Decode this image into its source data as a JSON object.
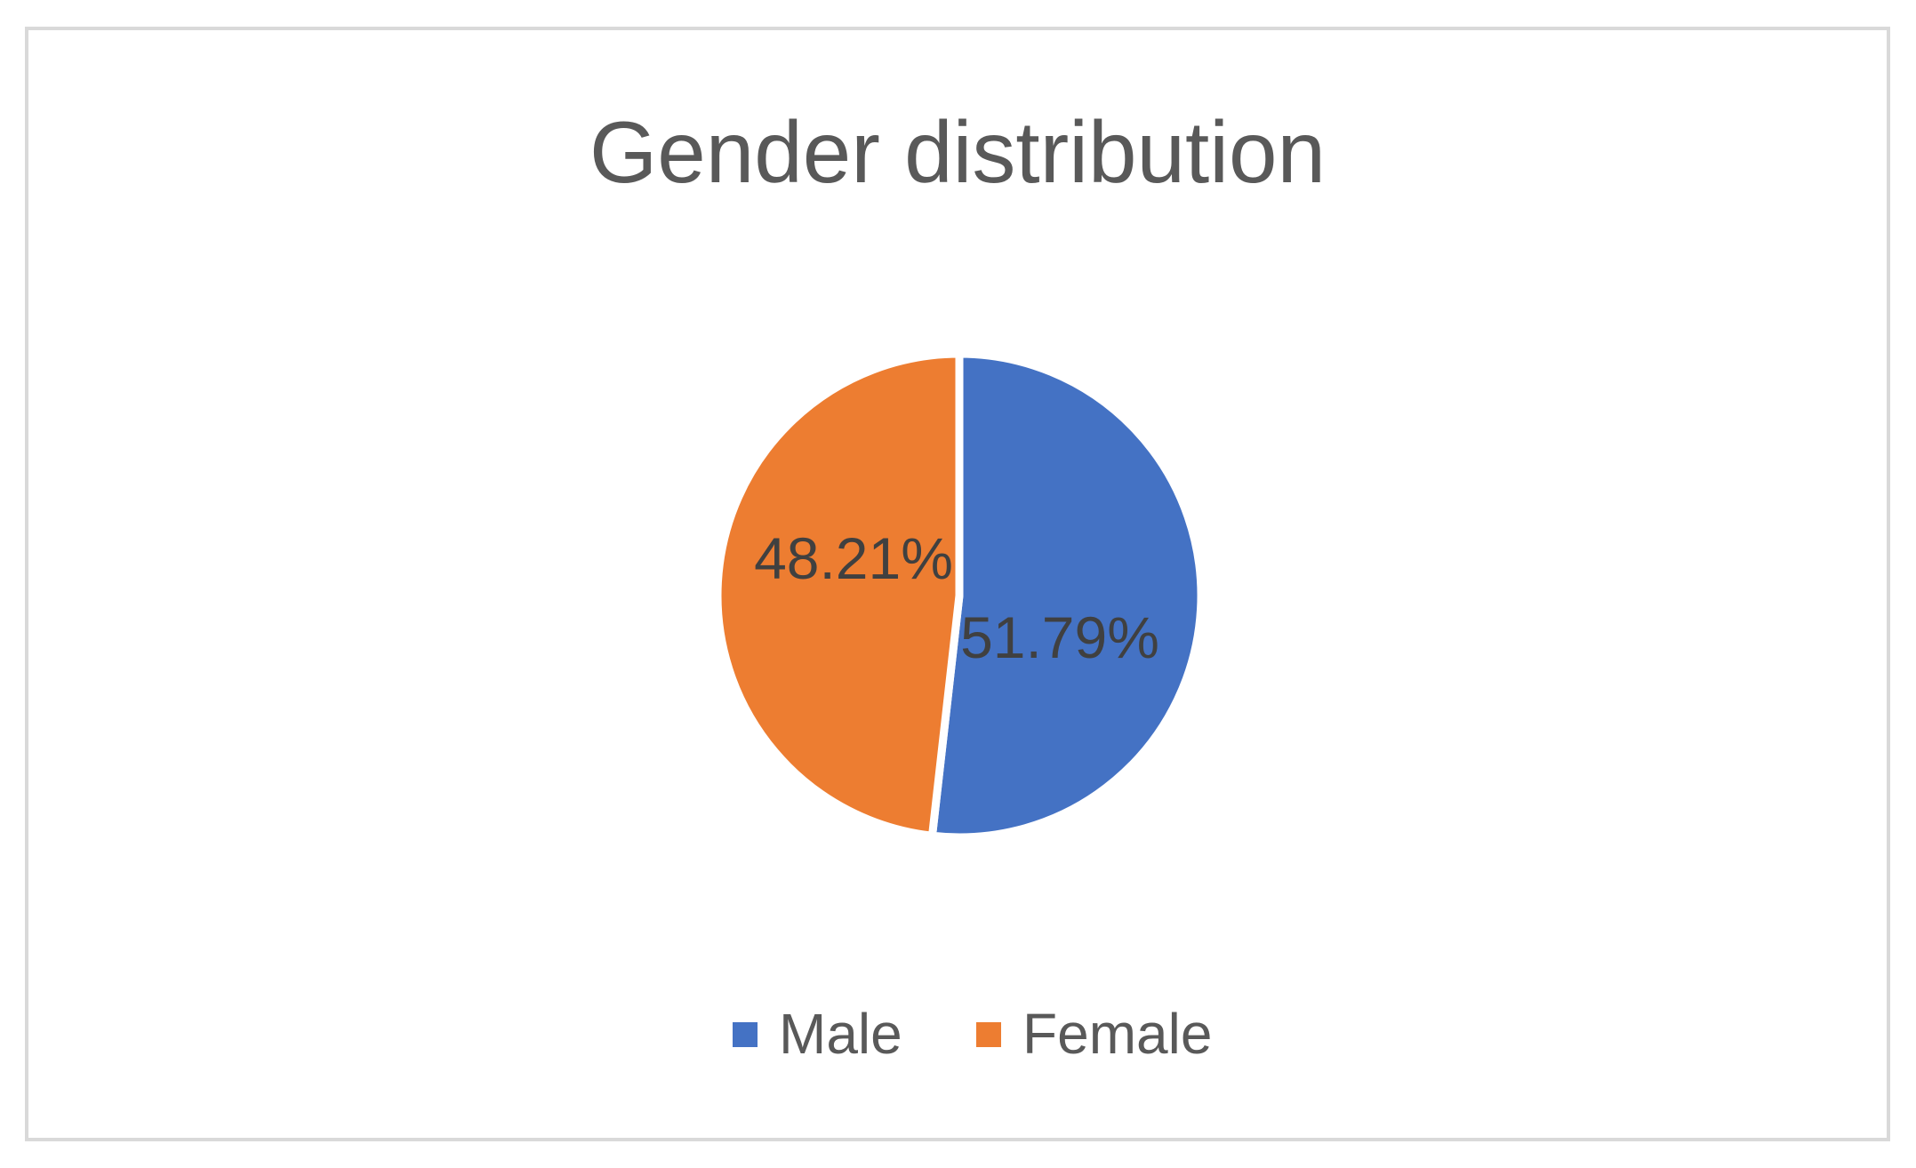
{
  "chart_data": {
    "type": "pie",
    "title": "Gender distribution",
    "series": [
      {
        "values": [
          51.79,
          48.21
        ],
        "labels": [
          "51.79%",
          "48.21%"
        ]
      }
    ],
    "categories": [
      "Male",
      "Female"
    ],
    "colors": {
      "Male": "#4472C4",
      "Female": "#ED7D31"
    },
    "legend_position": "bottom",
    "unit": "%"
  }
}
